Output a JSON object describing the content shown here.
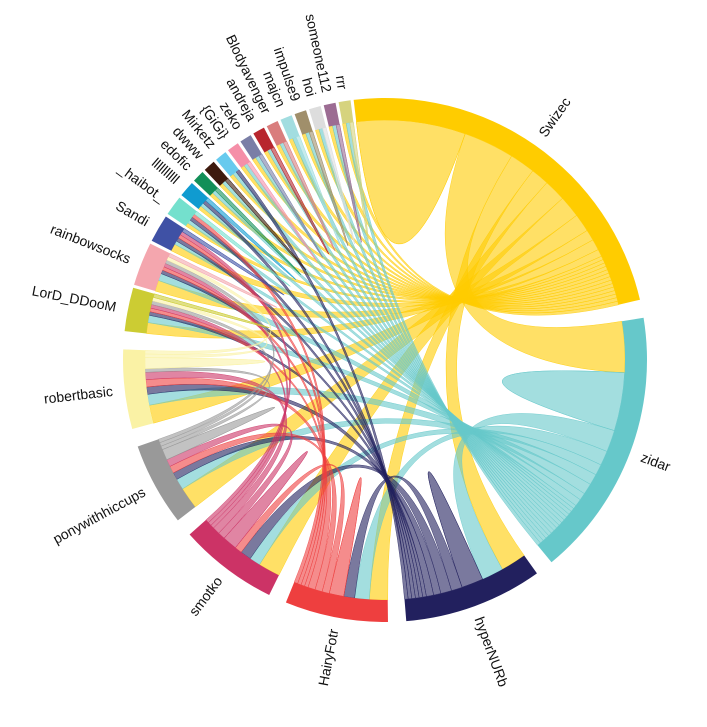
{
  "diagram": {
    "type": "chord",
    "groups": [
      {
        "id": "swizec",
        "name": "Swizec",
        "color": "#FFCC00"
      },
      {
        "id": "zidar",
        "name": "zidar",
        "color": "#66C8CA"
      },
      {
        "id": "hypernurb",
        "name": "hyperNURb",
        "color": "#22205E"
      },
      {
        "id": "hairyfotr",
        "name": "HairyFotr",
        "color": "#EE3F3F"
      },
      {
        "id": "smotko",
        "name": "smotko",
        "color": "#CC3366"
      },
      {
        "id": "ponywithhiccups",
        "name": "ponywithhiccups",
        "color": "#999999"
      },
      {
        "id": "robertbasic",
        "name": "robertbasic",
        "color": "#FAF2A5"
      },
      {
        "id": "lord_ddoom",
        "name": "LorD_DDooM",
        "color": "#CCCC33"
      },
      {
        "id": "rainbowsocks",
        "name": "rainbowsocks",
        "color": "#F4A6AE"
      },
      {
        "id": "sandi",
        "name": "Sandi",
        "color": "#3F51A5"
      },
      {
        "id": "haibot",
        "name": "_haibot_",
        "color": "#74E0CD"
      },
      {
        "id": "bars",
        "name": "llllllllll",
        "color": "#109BD0"
      },
      {
        "id": "edofic",
        "name": "edofic",
        "color": "#128F58"
      },
      {
        "id": "dwww",
        "name": "dwww",
        "color": "#3E1A0E"
      },
      {
        "id": "mirketz",
        "name": "Mirketz",
        "color": "#67CAEE"
      },
      {
        "id": "gigi",
        "name": "{GiGi}",
        "color": "#F58FA8"
      },
      {
        "id": "zeko",
        "name": "zeko",
        "color": "#7A7EA6"
      },
      {
        "id": "andreja",
        "name": "andreja",
        "color": "#B8262E"
      },
      {
        "id": "blodyavenger",
        "name": "Blodyavenger",
        "color": "#D97D7D"
      },
      {
        "id": "majcn",
        "name": "majcn",
        "color": "#A2DDE0"
      },
      {
        "id": "impulse9",
        "name": "impulse9",
        "color": "#A08F6B"
      },
      {
        "id": "hoi",
        "name": "hoi",
        "color": "#DDDDDD"
      },
      {
        "id": "someone112",
        "name": "someone112",
        "color": "#9C6C93"
      },
      {
        "id": "rrr",
        "name": "rrr",
        "color": "#D6D37E"
      }
    ],
    "matrix": [
      [
        30,
        14,
        7,
        5,
        6,
        6,
        5,
        3,
        3,
        2,
        1,
        1,
        1,
        1,
        1,
        1,
        1,
        1,
        1,
        1,
        1,
        1,
        1,
        1
      ],
      [
        14,
        16,
        6,
        4,
        3,
        3,
        3,
        2,
        2,
        1,
        1,
        1,
        1,
        1,
        1,
        1,
        1,
        1,
        1,
        1,
        1,
        1,
        1,
        1
      ],
      [
        7,
        6,
        6,
        3,
        3,
        2,
        2,
        1,
        1,
        1,
        1,
        1,
        0,
        0,
        1,
        0,
        0,
        0,
        0,
        0,
        0,
        0,
        0,
        0
      ],
      [
        5,
        4,
        3,
        4,
        2,
        2,
        2,
        1,
        1,
        1,
        1,
        0,
        0,
        0,
        0,
        0,
        0,
        0,
        0,
        0,
        0,
        0,
        0,
        0
      ],
      [
        6,
        3,
        3,
        2,
        4,
        2,
        2,
        1,
        1,
        1,
        0,
        0,
        0,
        0,
        0,
        0,
        0,
        0,
        0,
        0,
        0,
        0,
        0,
        0
      ],
      [
        6,
        3,
        2,
        2,
        2,
        3,
        1,
        1,
        1,
        0,
        0,
        0,
        0,
        0,
        0,
        0,
        0,
        0,
        0,
        0,
        0,
        0,
        0,
        0
      ],
      [
        5,
        3,
        2,
        2,
        2,
        1,
        3,
        1,
        1,
        0,
        0,
        0,
        0,
        0,
        0,
        0,
        0,
        0,
        0,
        0,
        0,
        0,
        0,
        0
      ],
      [
        3,
        2,
        1,
        1,
        1,
        1,
        1,
        1,
        0,
        0,
        0,
        0,
        0,
        0,
        0,
        0,
        0,
        0,
        0,
        0,
        0,
        0,
        0,
        0
      ],
      [
        3,
        2,
        1,
        1,
        1,
        1,
        1,
        0,
        1,
        0,
        0,
        0,
        0,
        0,
        0,
        0,
        0,
        0,
        0,
        0,
        0,
        0,
        0,
        0
      ],
      [
        2,
        1,
        1,
        1,
        1,
        0,
        0,
        0,
        0,
        1,
        0,
        0,
        0,
        0,
        0,
        0,
        0,
        0,
        0,
        0,
        0,
        0,
        0,
        0
      ],
      [
        1,
        1,
        1,
        1,
        0,
        0,
        0,
        0,
        0,
        0,
        1,
        0,
        0,
        0,
        0,
        0,
        0,
        0,
        0,
        0,
        0,
        0,
        0,
        0
      ],
      [
        1,
        1,
        1,
        0,
        0,
        0,
        0,
        0,
        0,
        0,
        0,
        1,
        0,
        0,
        0,
        0,
        0,
        0,
        0,
        0,
        0,
        0,
        0,
        0
      ],
      [
        1,
        1,
        0,
        0,
        0,
        0,
        0,
        0,
        0,
        0,
        0,
        0,
        1,
        0,
        0,
        0,
        0,
        0,
        0,
        0,
        0,
        0,
        0,
        0
      ],
      [
        1,
        1,
        0,
        0,
        0,
        0,
        0,
        0,
        0,
        0,
        0,
        0,
        0,
        1,
        0,
        0,
        0,
        0,
        0,
        0,
        0,
        0,
        0,
        0
      ],
      [
        1,
        1,
        1,
        0,
        0,
        0,
        0,
        0,
        0,
        0,
        0,
        0,
        0,
        0,
        0,
        0,
        0,
        0,
        0,
        0,
        0,
        0,
        0,
        0
      ],
      [
        1,
        1,
        0,
        0,
        0,
        0,
        0,
        0,
        0,
        0,
        0,
        0,
        0,
        0,
        0,
        1,
        0,
        0,
        0,
        0,
        0,
        0,
        0,
        0
      ],
      [
        1,
        1,
        0,
        0,
        0,
        0,
        0,
        0,
        0,
        0,
        0,
        0,
        0,
        0,
        0,
        0,
        1,
        0,
        0,
        0,
        0,
        0,
        0,
        0
      ],
      [
        1,
        1,
        0,
        0,
        0,
        0,
        0,
        0,
        0,
        0,
        0,
        0,
        0,
        0,
        0,
        0,
        0,
        1,
        0,
        0,
        0,
        0,
        0,
        0
      ],
      [
        1,
        1,
        0,
        0,
        0,
        0,
        0,
        0,
        0,
        0,
        0,
        0,
        0,
        0,
        0,
        0,
        0,
        0,
        1,
        0,
        0,
        0,
        0,
        0
      ],
      [
        1,
        1,
        0,
        0,
        0,
        0,
        0,
        0,
        0,
        0,
        0,
        0,
        0,
        0,
        0,
        0,
        0,
        0,
        0,
        1,
        0,
        0,
        0,
        0
      ],
      [
        1,
        1,
        0,
        0,
        0,
        0,
        0,
        0,
        0,
        0,
        0,
        0,
        0,
        0,
        0,
        0,
        0,
        0,
        0,
        0,
        1,
        0,
        0,
        0
      ],
      [
        1,
        1,
        0,
        0,
        0,
        0,
        0,
        0,
        0,
        0,
        0,
        0,
        0,
        0,
        0,
        0,
        0,
        0,
        0,
        0,
        0,
        1,
        0,
        0
      ],
      [
        1,
        1,
        0,
        0,
        0,
        0,
        0,
        0,
        0,
        0,
        0,
        0,
        0,
        0,
        0,
        0,
        0,
        0,
        0,
        0,
        0,
        0,
        1,
        0
      ],
      [
        1,
        1,
        0,
        0,
        0,
        0,
        0,
        0,
        0,
        0,
        0,
        0,
        0,
        0,
        0,
        0,
        0,
        0,
        0,
        0,
        0,
        0,
        0,
        1
      ]
    ]
  }
}
